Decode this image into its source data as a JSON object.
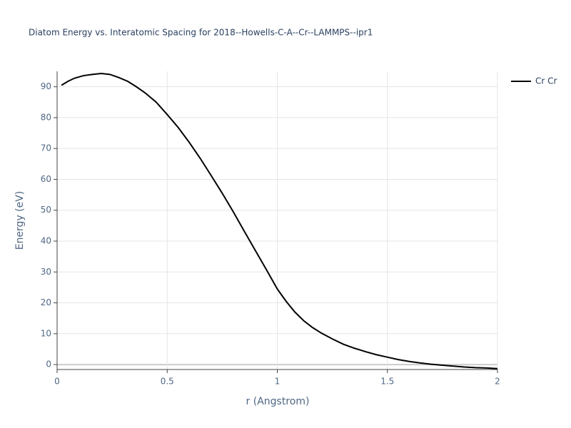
{
  "chart_data": {
    "type": "line",
    "title": "Diatom Energy vs. Interatomic Spacing for 2018--Howells-C-A--Cr--LAMMPS--ipr1",
    "x_label": "r (Angstrom)",
    "y_label": "Energy (eV)",
    "x": [
      0.02,
      0.05,
      0.08,
      0.12,
      0.16,
      0.2,
      0.24,
      0.28,
      0.32,
      0.36,
      0.4,
      0.45,
      0.5,
      0.55,
      0.6,
      0.65,
      0.7,
      0.75,
      0.8,
      0.85,
      0.9,
      0.95,
      1.0,
      1.04,
      1.08,
      1.12,
      1.16,
      1.2,
      1.25,
      1.3,
      1.35,
      1.4,
      1.45,
      1.5,
      1.55,
      1.6,
      1.65,
      1.7,
      1.75,
      1.8,
      1.85,
      1.9,
      1.95,
      2.0
    ],
    "series": [
      {
        "name": "Cr Cr",
        "color": "#000000",
        "values": [
          90.5,
          91.8,
          92.8,
          93.6,
          94.0,
          94.3,
          94.0,
          93.0,
          91.8,
          90.0,
          88.0,
          85.0,
          81.0,
          76.8,
          72.0,
          66.8,
          61.2,
          55.5,
          49.5,
          43.2,
          37.0,
          30.8,
          24.5,
          20.5,
          17.0,
          14.2,
          12.0,
          10.2,
          8.3,
          6.6,
          5.3,
          4.2,
          3.2,
          2.4,
          1.6,
          1.0,
          0.5,
          0.1,
          -0.2,
          -0.5,
          -0.8,
          -1.0,
          -1.1,
          -1.3
        ]
      }
    ],
    "xlim": [
      0,
      2
    ],
    "xticks": [
      0,
      0.5,
      1,
      1.5,
      2
    ],
    "ylim": [
      -1.6,
      95
    ],
    "yticks": [
      0,
      10,
      20,
      30,
      40,
      50,
      60,
      70,
      80,
      90
    ],
    "grid": true
  }
}
